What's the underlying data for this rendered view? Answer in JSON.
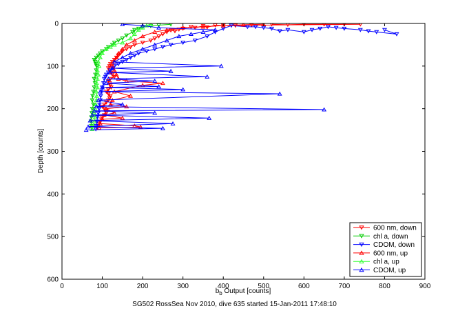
{
  "chart_data": {
    "type": "scatter",
    "xlabel": "b_b Output [counts]",
    "xlabel_main": "b",
    "xlabel_sub": "b",
    "xlabel_rest": " Output [counts]",
    "ylabel": "Depth [counts]",
    "xlim": [
      0,
      900
    ],
    "ylim": [
      0,
      600
    ],
    "y_reversed": true,
    "xticks": [
      "0",
      "100",
      "200",
      "300",
      "400",
      "500",
      "600",
      "700",
      "800",
      "900"
    ],
    "yticks": [
      "0",
      "100",
      "200",
      "300",
      "400",
      "500",
      "600"
    ],
    "caption": "SG502 RossSea Nov 2010, dive 635 started 15-Jan-2011 17:48:10",
    "legend_position": "bottom-right",
    "series": [
      {
        "name": "600 nm, down",
        "color": "#ff0000",
        "marker": "triangle-down",
        "points": [
          [
            520,
            2
          ],
          [
            560,
            3
          ],
          [
            600,
            2
          ],
          [
            650,
            2
          ],
          [
            700,
            2
          ],
          [
            740,
            2
          ],
          [
            470,
            4
          ],
          [
            430,
            5
          ],
          [
            400,
            5
          ],
          [
            380,
            4
          ],
          [
            360,
            9
          ],
          [
            350,
            6
          ],
          [
            330,
            10
          ],
          [
            320,
            8
          ],
          [
            300,
            12
          ],
          [
            290,
            14
          ],
          [
            280,
            18
          ],
          [
            270,
            16
          ],
          [
            260,
            20
          ],
          [
            250,
            25
          ],
          [
            240,
            30
          ],
          [
            230,
            35
          ],
          [
            220,
            40
          ],
          [
            200,
            45
          ],
          [
            180,
            50
          ],
          [
            170,
            55
          ],
          [
            160,
            60
          ],
          [
            150,
            65
          ],
          [
            145,
            70
          ],
          [
            140,
            75
          ],
          [
            135,
            80
          ],
          [
            130,
            85
          ],
          [
            125,
            90
          ],
          [
            120,
            95
          ],
          [
            118,
            100
          ],
          [
            115,
            105
          ],
          [
            118,
            110
          ],
          [
            120,
            115
          ],
          [
            125,
            120
          ],
          [
            130,
            125
          ],
          [
            120,
            130
          ],
          [
            115,
            135
          ],
          [
            118,
            140
          ],
          [
            120,
            145
          ],
          [
            122,
            150
          ],
          [
            115,
            155
          ],
          [
            110,
            160
          ],
          [
            115,
            165
          ],
          [
            120,
            170
          ],
          [
            118,
            175
          ],
          [
            115,
            180
          ],
          [
            110,
            185
          ],
          [
            105,
            190
          ],
          [
            100,
            195
          ],
          [
            105,
            200
          ],
          [
            108,
            205
          ],
          [
            110,
            210
          ],
          [
            105,
            215
          ],
          [
            100,
            220
          ],
          [
            98,
            225
          ],
          [
            95,
            230
          ],
          [
            92,
            235
          ],
          [
            90,
            240
          ],
          [
            88,
            245
          ]
        ]
      },
      {
        "name": "chl a, down",
        "color": "#00cc00",
        "marker": "triangle-down",
        "points": [
          [
            270,
            2
          ],
          [
            240,
            4
          ],
          [
            220,
            6
          ],
          [
            200,
            8
          ],
          [
            190,
            12
          ],
          [
            180,
            15
          ],
          [
            175,
            20
          ],
          [
            160,
            28
          ],
          [
            150,
            35
          ],
          [
            140,
            40
          ],
          [
            130,
            45
          ],
          [
            125,
            50
          ],
          [
            115,
            55
          ],
          [
            110,
            60
          ],
          [
            100,
            65
          ],
          [
            95,
            70
          ],
          [
            90,
            75
          ],
          [
            85,
            80
          ],
          [
            80,
            85
          ],
          [
            82,
            90
          ],
          [
            84,
            95
          ],
          [
            86,
            100
          ],
          [
            85,
            110
          ],
          [
            83,
            120
          ],
          [
            80,
            130
          ],
          [
            82,
            140
          ],
          [
            80,
            150
          ],
          [
            78,
            160
          ],
          [
            76,
            170
          ],
          [
            75,
            180
          ],
          [
            78,
            190
          ],
          [
            75,
            200
          ],
          [
            74,
            210
          ],
          [
            73,
            220
          ],
          [
            72,
            230
          ],
          [
            73,
            240
          ],
          [
            74,
            245
          ]
        ]
      },
      {
        "name": "CDOM, down",
        "color": "#0000ff",
        "marker": "triangle-down",
        "points": [
          [
            800,
            15
          ],
          [
            830,
            25
          ],
          [
            780,
            20
          ],
          [
            760,
            18
          ],
          [
            740,
            15
          ],
          [
            700,
            12
          ],
          [
            680,
            10
          ],
          [
            660,
            8
          ],
          [
            640,
            12
          ],
          [
            620,
            15
          ],
          [
            600,
            20
          ],
          [
            560,
            15
          ],
          [
            540,
            18
          ],
          [
            520,
            12
          ],
          [
            500,
            10
          ],
          [
            480,
            8
          ],
          [
            460,
            8
          ],
          [
            420,
            5
          ],
          [
            400,
            12
          ],
          [
            380,
            20
          ],
          [
            360,
            30
          ],
          [
            330,
            40
          ],
          [
            300,
            45
          ],
          [
            270,
            50
          ],
          [
            250,
            55
          ],
          [
            230,
            60
          ],
          [
            210,
            65
          ],
          [
            190,
            70
          ],
          [
            180,
            75
          ],
          [
            170,
            80
          ],
          [
            160,
            85
          ],
          [
            150,
            90
          ],
          [
            140,
            95
          ],
          [
            130,
            100
          ],
          [
            125,
            105
          ],
          [
            120,
            110
          ],
          [
            115,
            115
          ],
          [
            110,
            120
          ],
          [
            108,
            125
          ],
          [
            105,
            130
          ],
          [
            103,
            140
          ],
          [
            100,
            150
          ],
          [
            98,
            160
          ],
          [
            96,
            170
          ],
          [
            95,
            180
          ],
          [
            93,
            190
          ],
          [
            92,
            200
          ],
          [
            90,
            210
          ],
          [
            88,
            220
          ],
          [
            87,
            230
          ],
          [
            85,
            240
          ],
          [
            84,
            248
          ]
        ]
      },
      {
        "name": "600 nm, up",
        "color": "#ff0000",
        "marker": "triangle-up",
        "points": [
          [
            92,
            245
          ],
          [
            195,
            243
          ],
          [
            180,
            240
          ],
          [
            95,
            235
          ],
          [
            100,
            225
          ],
          [
            150,
            222
          ],
          [
            105,
            215
          ],
          [
            130,
            210
          ],
          [
            110,
            200
          ],
          [
            160,
            195
          ],
          [
            120,
            190
          ],
          [
            125,
            180
          ],
          [
            170,
            170
          ],
          [
            130,
            160
          ],
          [
            200,
            145
          ],
          [
            250,
            140
          ],
          [
            160,
            135
          ],
          [
            140,
            130
          ],
          [
            135,
            120
          ],
          [
            130,
            110
          ],
          [
            125,
            100
          ],
          [
            130,
            90
          ],
          [
            135,
            80
          ],
          [
            140,
            70
          ],
          [
            150,
            60
          ],
          [
            160,
            50
          ],
          [
            180,
            40
          ],
          [
            200,
            30
          ],
          [
            230,
            20
          ],
          [
            260,
            15
          ],
          [
            300,
            10
          ],
          [
            350,
            8
          ],
          [
            400,
            5
          ],
          [
            450,
            3
          ],
          [
            500,
            2
          ]
        ]
      },
      {
        "name": "chl a, up",
        "color": "#33ff33",
        "marker": "triangle-up",
        "points": [
          [
            75,
            248
          ],
          [
            78,
            240
          ],
          [
            80,
            230
          ],
          [
            82,
            220
          ],
          [
            80,
            210
          ],
          [
            82,
            200
          ],
          [
            84,
            190
          ],
          [
            85,
            180
          ],
          [
            86,
            170
          ],
          [
            85,
            160
          ],
          [
            88,
            150
          ],
          [
            86,
            140
          ],
          [
            88,
            130
          ],
          [
            90,
            120
          ],
          [
            88,
            110
          ],
          [
            92,
            100
          ],
          [
            90,
            90
          ],
          [
            95,
            80
          ],
          [
            100,
            70
          ],
          [
            110,
            60
          ],
          [
            120,
            55
          ],
          [
            130,
            50
          ],
          [
            150,
            45
          ],
          [
            170,
            35
          ],
          [
            180,
            25
          ],
          [
            190,
            15
          ],
          [
            200,
            10
          ],
          [
            210,
            5
          ],
          [
            220,
            3
          ]
        ]
      },
      {
        "name": "CDOM, up",
        "color": "#0000ff",
        "marker": "triangle-up",
        "points": [
          [
            60,
            250
          ],
          [
            250,
            246
          ],
          [
            65,
            242
          ],
          [
            275,
            235
          ],
          [
            70,
            228
          ],
          [
            365,
            222
          ],
          [
            75,
            215
          ],
          [
            230,
            210
          ],
          [
            80,
            205
          ],
          [
            650,
            202
          ],
          [
            85,
            195
          ],
          [
            150,
            190
          ],
          [
            90,
            180
          ],
          [
            540,
            165
          ],
          [
            95,
            160
          ],
          [
            300,
            155
          ],
          [
            100,
            150
          ],
          [
            240,
            148
          ],
          [
            110,
            140
          ],
          [
            230,
            135
          ],
          [
            115,
            130
          ],
          [
            360,
            125
          ],
          [
            120,
            115
          ],
          [
            270,
            112
          ],
          [
            125,
            105
          ],
          [
            395,
            100
          ],
          [
            130,
            90
          ],
          [
            150,
            80
          ],
          [
            170,
            70
          ],
          [
            200,
            60
          ],
          [
            230,
            50
          ],
          [
            260,
            40
          ],
          [
            290,
            30
          ],
          [
            320,
            25
          ],
          [
            350,
            20
          ],
          [
            380,
            15
          ],
          [
            240,
            10
          ],
          [
            200,
            5
          ],
          [
            150,
            2
          ]
        ]
      }
    ]
  }
}
